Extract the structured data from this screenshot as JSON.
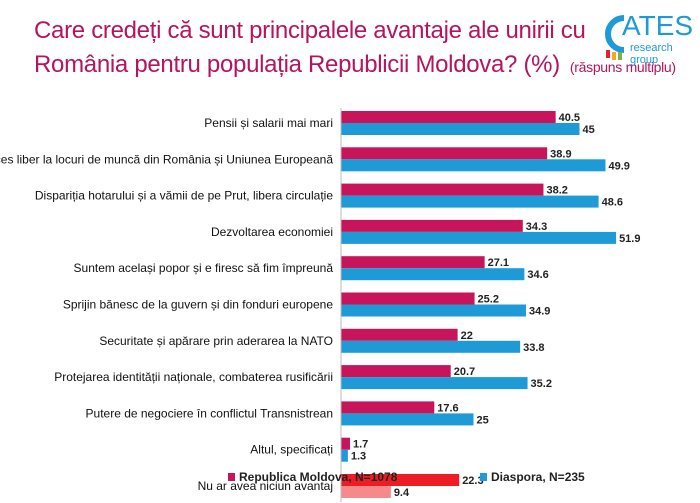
{
  "header": {
    "title_line1": "Care credeți că sunt principalele avantaje ale unirii cu",
    "title_line2": "România pentru populația Republicii Moldova? (%)",
    "note": "(răspuns multiplu)",
    "logo_text": "ATES",
    "logo_sub": "research group"
  },
  "chart_data": {
    "type": "bar",
    "orientation": "horizontal",
    "title": "Care credeți că sunt principalele avantaje ale unirii cu România pentru populația Republicii Moldova? (%)",
    "categories": [
      "Pensii și salarii mai mari",
      "Acces liber la locuri de muncă din România și Uniunea Europeană",
      "Dispariția hotarului și a vămii de pe Prut, libera circulație",
      "Dezvoltarea economiei",
      "Suntem același popor și e firesc să fim împreună",
      "Sprijin bănesc de la guvern și din fonduri europene",
      "Securitate și apărare prin aderarea la NATO",
      "Protejarea identității naționale, combaterea rusificării",
      "Putere de negociere în conflictul Transnistrean",
      "Altul, specificați",
      "Nu ar avea niciun avantaj"
    ],
    "series": [
      {
        "name": "Republica Moldova, N=1078",
        "color": "#C8145A",
        "values": [
          40.5,
          38.9,
          38.2,
          34.3,
          27.1,
          25.2,
          22,
          20.7,
          17.6,
          1.7,
          22.3
        ]
      },
      {
        "name": "Diaspora, N=235",
        "color": "#1E9BD7",
        "values": [
          45,
          49.9,
          48.6,
          51.9,
          34.6,
          34.9,
          33.8,
          35.2,
          25,
          1.3,
          9.4
        ]
      }
    ],
    "highlight_last_colors": [
      "#EE1C25",
      "#F58A8A"
    ],
    "legend": "bottom",
    "grid": false
  }
}
